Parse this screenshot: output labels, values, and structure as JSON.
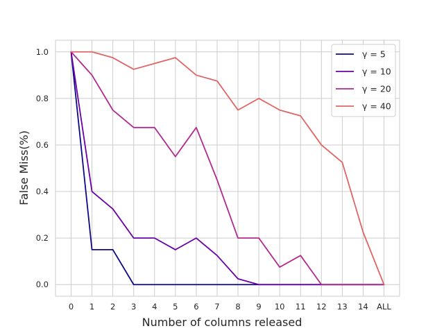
{
  "chart_data": {
    "type": "line",
    "title": "",
    "xlabel": "Number of columns released",
    "ylabel": "False Miss(%)",
    "x": [
      "0",
      "1",
      "2",
      "3",
      "4",
      "5",
      "6",
      "7",
      "8",
      "9",
      "10",
      "11",
      "12",
      "13",
      "14",
      "ALL"
    ],
    "ylim": [
      -0.05,
      1.05
    ],
    "yticks": [
      "0.0",
      "0.2",
      "0.4",
      "0.6",
      "0.8",
      "1.0"
    ],
    "grid": true,
    "legend_position": "top-right",
    "series": [
      {
        "name": "γ = 5",
        "color": "#0d0887",
        "values": [
          1.0,
          0.15,
          0.15,
          0.0,
          0.0,
          0.0,
          0.0,
          0.0,
          0.0,
          0.0,
          0.0,
          0.0,
          0.0,
          0.0,
          0.0,
          0.0
        ]
      },
      {
        "name": "γ = 10",
        "color": "#6a00a8",
        "values": [
          1.0,
          0.4,
          0.325,
          0.2,
          0.2,
          0.15,
          0.2,
          0.125,
          0.025,
          0.0,
          0.0,
          0.0,
          0.0,
          0.0,
          0.0,
          0.0
        ]
      },
      {
        "name": "γ = 20",
        "color": "#b12a90",
        "values": [
          1.0,
          0.9,
          0.75,
          0.675,
          0.675,
          0.55,
          0.675,
          0.45,
          0.2,
          0.2,
          0.075,
          0.125,
          0.0,
          0.0,
          0.0,
          0.0
        ]
      },
      {
        "name": "γ = 40",
        "color": "#e16462",
        "values": [
          1.0,
          1.0,
          0.975,
          0.925,
          0.95,
          0.975,
          0.9,
          0.875,
          0.75,
          0.8,
          0.75,
          0.725,
          0.6,
          0.525,
          0.225,
          0.0
        ]
      }
    ]
  }
}
